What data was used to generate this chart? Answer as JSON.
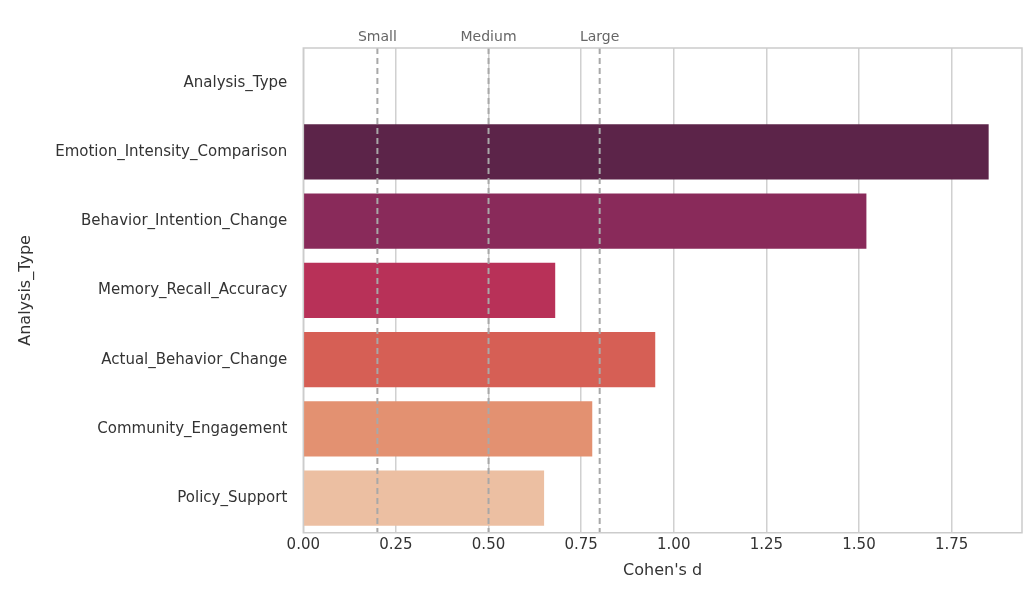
{
  "chart_data": {
    "type": "bar",
    "orientation": "horizontal",
    "xlabel": "Cohen's d",
    "ylabel": "Analysis_Type",
    "categories": [
      "Analysis_Type",
      "Emotion_Intensity_Comparison",
      "Behavior_Intention_Change",
      "Memory_Recall_Accuracy",
      "Actual_Behavior_Change",
      "Community_Engagement",
      "Policy_Support"
    ],
    "values": [
      null,
      1.85,
      1.52,
      0.68,
      0.95,
      0.78,
      0.65
    ],
    "colors": [
      "#5c2449",
      "#5c2449",
      "#892a5a",
      "#b83158",
      "#d65f55",
      "#e39171",
      "#ecbfa2"
    ],
    "xlim": [
      0,
      1.94
    ],
    "xticks": [
      {
        "value": 0,
        "label": "0.00"
      },
      {
        "value": 0.25,
        "label": "0.25"
      },
      {
        "value": 0.5,
        "label": "0.50"
      },
      {
        "value": 0.75,
        "label": "0.75"
      },
      {
        "value": 1,
        "label": "1.00"
      },
      {
        "value": 1.25,
        "label": "1.25"
      },
      {
        "value": 1.5,
        "label": "1.50"
      },
      {
        "value": 1.75,
        "label": "1.75"
      }
    ],
    "grid": "x",
    "legend": false,
    "ref_lines": [
      {
        "axis": "x",
        "value": 0.2,
        "label": "Small",
        "color": "#a8a8a8",
        "line_style": "dashed"
      },
      {
        "axis": "x",
        "value": 0.5,
        "label": "Medium",
        "color": "#a8a8a8",
        "line_style": "dashed"
      },
      {
        "axis": "x",
        "value": 0.8,
        "label": "Large",
        "color": "#a8a8a8",
        "line_style": "dashed"
      }
    ]
  }
}
